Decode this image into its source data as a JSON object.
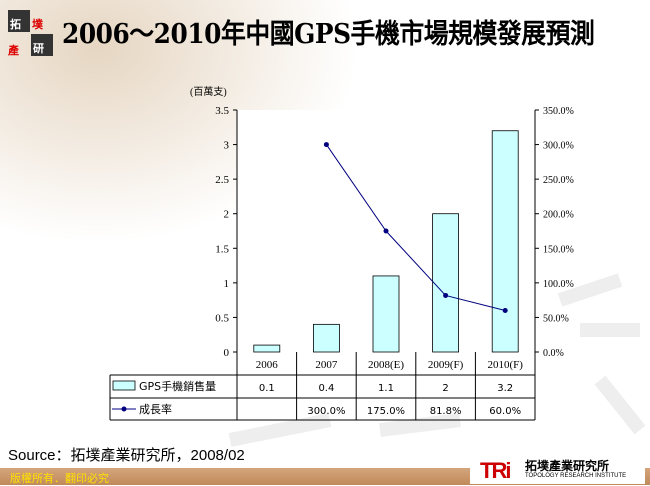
{
  "header": {
    "title": "2006～2010年中國GPS手機市場規模發展預測",
    "logo_text": "拓墣產研"
  },
  "source": "Source：拓墣產業研究所，2008/02",
  "footer": {
    "copyright": "版權所有．翻印必究",
    "logo_mark": "TRi",
    "logo_cn": "拓墣產業研究所",
    "logo_en": "TOPOLOGY RESEARCH INSTITUTE"
  },
  "chart_data": {
    "type": "bar+line",
    "categories": [
      "2006",
      "2007",
      "2008(E)",
      "2009(F)",
      "2010(F)"
    ],
    "y_unit_label": "(百萬支)",
    "ylim": [
      0,
      3.5
    ],
    "y_ticks": [
      "0",
      "0.5",
      "1",
      "1.5",
      "2",
      "2.5",
      "3",
      "3.5"
    ],
    "y2lim": [
      0,
      350
    ],
    "y2_ticks": [
      "0.0%",
      "50.0%",
      "100.0%",
      "150.0%",
      "200.0%",
      "250.0%",
      "300.0%",
      "350.0%"
    ],
    "series": [
      {
        "name": "GPS手機銷售量",
        "type": "bar",
        "color": "#ccffff",
        "values": [
          0.1,
          0.4,
          1.1,
          2,
          3.2
        ],
        "labels": [
          "0.1",
          "0.4",
          "1.1",
          "2",
          "3.2"
        ]
      },
      {
        "name": "成長率",
        "type": "line",
        "axis": "right",
        "color": "#000080",
        "values": [
          null,
          300,
          175,
          81.8,
          60
        ],
        "labels": [
          "",
          "300.0%",
          "175.0%",
          "81.8%",
          "60.0%"
        ]
      }
    ],
    "grid": false,
    "legend": "data-table"
  }
}
